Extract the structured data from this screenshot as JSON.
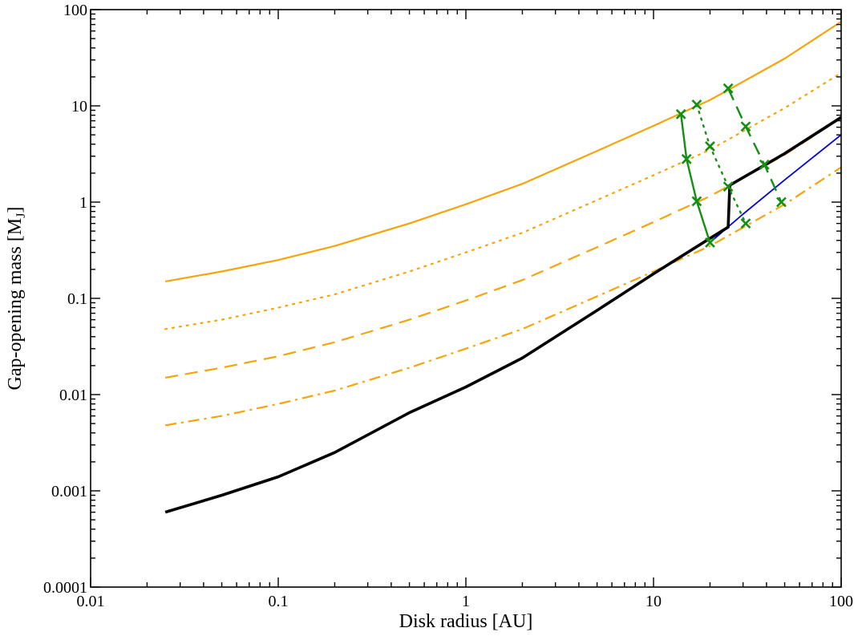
{
  "chart_data": {
    "type": "line",
    "xscale": "log",
    "yscale": "log",
    "xlim": [
      0.01,
      100
    ],
    "ylim": [
      0.0001,
      100
    ],
    "xlabel": "Disk radius [AU]",
    "ylabel_main": "Gap-opening mass [M",
    "ylabel_sub": "J",
    "ylabel_close": "]",
    "grid": false,
    "x_ticks": [
      {
        "value": 0.01,
        "label": "0.01"
      },
      {
        "value": 0.1,
        "label": "0.1"
      },
      {
        "value": 1,
        "label": "1"
      },
      {
        "value": 10,
        "label": "10"
      },
      {
        "value": 100,
        "label": "100"
      }
    ],
    "y_ticks": [
      {
        "value": 0.0001,
        "label": "0.0001"
      },
      {
        "value": 0.001,
        "label": "0.001"
      },
      {
        "value": 0.01,
        "label": "0.01"
      },
      {
        "value": 0.1,
        "label": "0.1"
      },
      {
        "value": 1,
        "label": "1"
      },
      {
        "value": 10,
        "label": "10"
      },
      {
        "value": 100,
        "label": "100"
      }
    ],
    "series": [
      {
        "id": "orange-solid",
        "color": "#f5a50a",
        "dash": "solid",
        "width": 2.2,
        "x": [
          0.025,
          0.05,
          0.1,
          0.2,
          0.5,
          1,
          2,
          5,
          10,
          20,
          50,
          100
        ],
        "y": [
          0.15,
          0.19,
          0.25,
          0.35,
          0.6,
          0.95,
          1.55,
          3.4,
          6.2,
          11.5,
          31,
          75
        ]
      },
      {
        "id": "orange-dotted",
        "color": "#f5a50a",
        "dash": "dotted",
        "width": 2.2,
        "x": [
          0.025,
          0.05,
          0.1,
          0.2,
          0.5,
          1,
          2,
          5,
          10,
          20,
          50,
          100
        ],
        "y": [
          0.048,
          0.06,
          0.08,
          0.11,
          0.19,
          0.3,
          0.48,
          1.05,
          1.9,
          3.5,
          9.5,
          22
        ]
      },
      {
        "id": "orange-dashed",
        "color": "#f5a50a",
        "dash": "dashed",
        "width": 2.2,
        "x": [
          0.025,
          0.05,
          0.1,
          0.2,
          0.5,
          1,
          2,
          5,
          10,
          20,
          50,
          100
        ],
        "y": [
          0.015,
          0.019,
          0.025,
          0.035,
          0.06,
          0.095,
          0.155,
          0.34,
          0.62,
          1.15,
          3.1,
          7.5
        ]
      },
      {
        "id": "orange-dashdot",
        "color": "#f5a50a",
        "dash": "dashdot",
        "width": 2.2,
        "x": [
          0.025,
          0.05,
          0.1,
          0.2,
          0.5,
          1,
          2,
          5,
          10,
          20,
          50,
          100
        ],
        "y": [
          0.0048,
          0.006,
          0.008,
          0.011,
          0.019,
          0.03,
          0.048,
          0.105,
          0.19,
          0.35,
          0.95,
          2.3
        ]
      },
      {
        "id": "blue",
        "color": "#0000e0",
        "dash": "solid",
        "width": 1.8,
        "x": [
          20,
          30,
          50,
          100
        ],
        "y": [
          0.38,
          0.75,
          1.7,
          5.0
        ]
      },
      {
        "id": "black",
        "color": "#000000",
        "dash": "solid",
        "width": 3.6,
        "x": [
          0.025,
          0.05,
          0.1,
          0.2,
          0.5,
          1,
          2,
          5,
          10,
          20,
          25,
          25.5,
          30,
          50,
          100
        ],
        "y": [
          0.0006,
          0.0009,
          0.0014,
          0.0025,
          0.0065,
          0.012,
          0.024,
          0.075,
          0.18,
          0.42,
          0.55,
          1.5,
          1.8,
          3.2,
          7.6
        ]
      },
      {
        "id": "green-solid",
        "color": "#138f13",
        "dash": "solid",
        "width": 2.4,
        "markers": true,
        "x": [
          14,
          15,
          17,
          20
        ],
        "y": [
          8.2,
          2.8,
          1.02,
          0.38
        ]
      },
      {
        "id": "green-dotted",
        "color": "#138f13",
        "dash": "dotted",
        "width": 2.4,
        "markers": true,
        "x": [
          17,
          20,
          25,
          31
        ],
        "y": [
          10.3,
          3.8,
          1.45,
          0.6
        ]
      },
      {
        "id": "green-dashed",
        "color": "#138f13",
        "dash": "dashed",
        "width": 2.4,
        "markers": true,
        "x": [
          25,
          31,
          39,
          48
        ],
        "y": [
          15.2,
          6.1,
          2.45,
          1.0
        ]
      }
    ]
  }
}
